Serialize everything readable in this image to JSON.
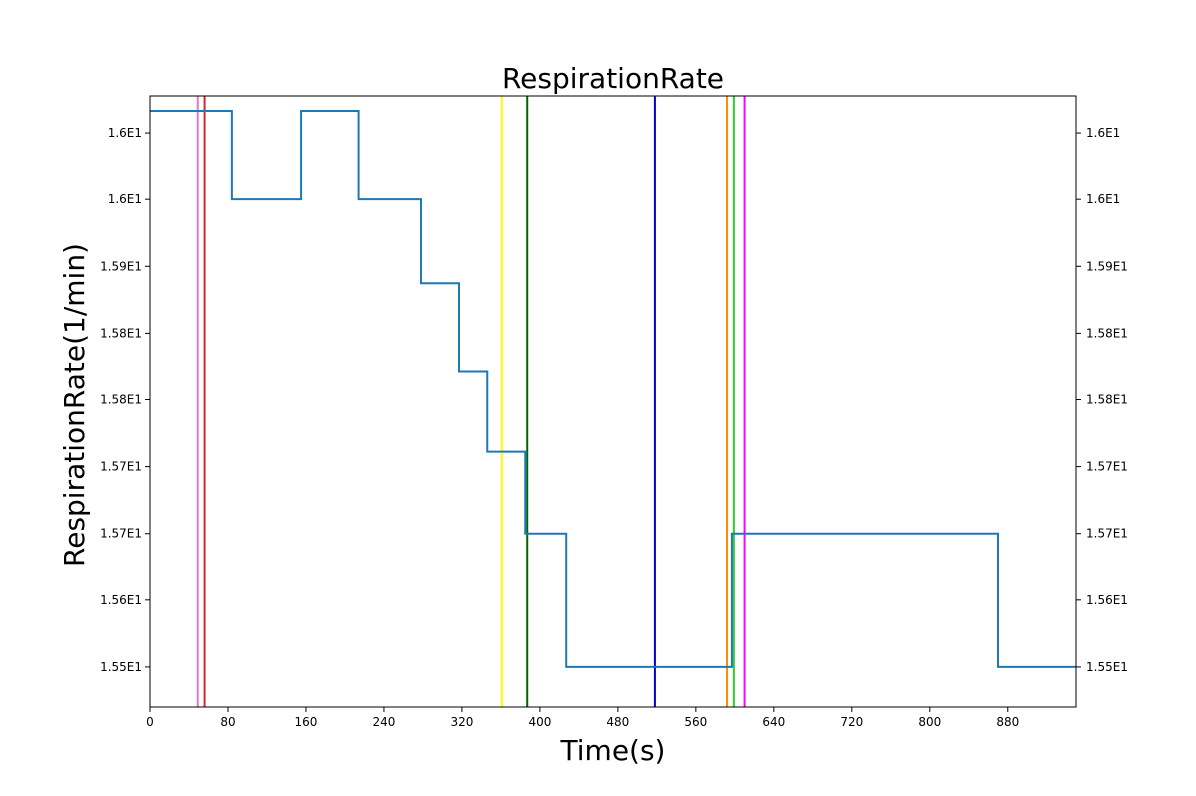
{
  "chart_data": {
    "type": "line",
    "title": "RespirationRate",
    "xlabel": "Time(s)",
    "ylabel": "RespirationRate(1/min)",
    "xlim": [
      0,
      950
    ],
    "ylim": [
      15.46,
      16.07
    ],
    "grid": false,
    "x_ticks": [
      {
        "value": 0,
        "label": "0"
      },
      {
        "value": 80,
        "label": "80"
      },
      {
        "value": 160,
        "label": "160"
      },
      {
        "value": 240,
        "label": "240"
      },
      {
        "value": 320,
        "label": "320"
      },
      {
        "value": 400,
        "label": "400"
      },
      {
        "value": 480,
        "label": "480"
      },
      {
        "value": 560,
        "label": "560"
      },
      {
        "value": 640,
        "label": "640"
      },
      {
        "value": 720,
        "label": "720"
      },
      {
        "value": 800,
        "label": "800"
      },
      {
        "value": 880,
        "label": "880"
      }
    ],
    "y_ticks": [
      {
        "value": 15.5,
        "label": "1.55E1"
      },
      {
        "value": 15.567,
        "label": "1.56E1"
      },
      {
        "value": 15.633,
        "label": "1.57E1"
      },
      {
        "value": 15.7,
        "label": "1.57E1"
      },
      {
        "value": 15.767,
        "label": "1.58E1"
      },
      {
        "value": 15.833,
        "label": "1.58E1"
      },
      {
        "value": 15.9,
        "label": "1.59E1"
      },
      {
        "value": 15.967,
        "label": "1.6E1"
      },
      {
        "value": 16.033,
        "label": "1.6E1"
      }
    ],
    "series": [
      {
        "color": "#1f77b4",
        "step": "post",
        "x": [
          0,
          84,
          155,
          214,
          278,
          317,
          346,
          385,
          427,
          597,
          870,
          950
        ],
        "y": [
          16.055,
          15.967,
          16.055,
          15.967,
          15.883,
          15.795,
          15.715,
          15.633,
          15.5,
          15.633,
          15.5,
          15.5
        ]
      }
    ],
    "vertical_lines": [
      {
        "x": 49,
        "color": "#e377c2"
      },
      {
        "x": 56,
        "color": "#d62728"
      },
      {
        "x": 361,
        "color": "#ffff00"
      },
      {
        "x": 387,
        "color": "#006400"
      },
      {
        "x": 518,
        "color": "#0000cd"
      },
      {
        "x": 592,
        "color": "#ff8c00"
      },
      {
        "x": 599,
        "color": "#32cd32"
      },
      {
        "x": 610,
        "color": "#ff00ff"
      }
    ]
  }
}
